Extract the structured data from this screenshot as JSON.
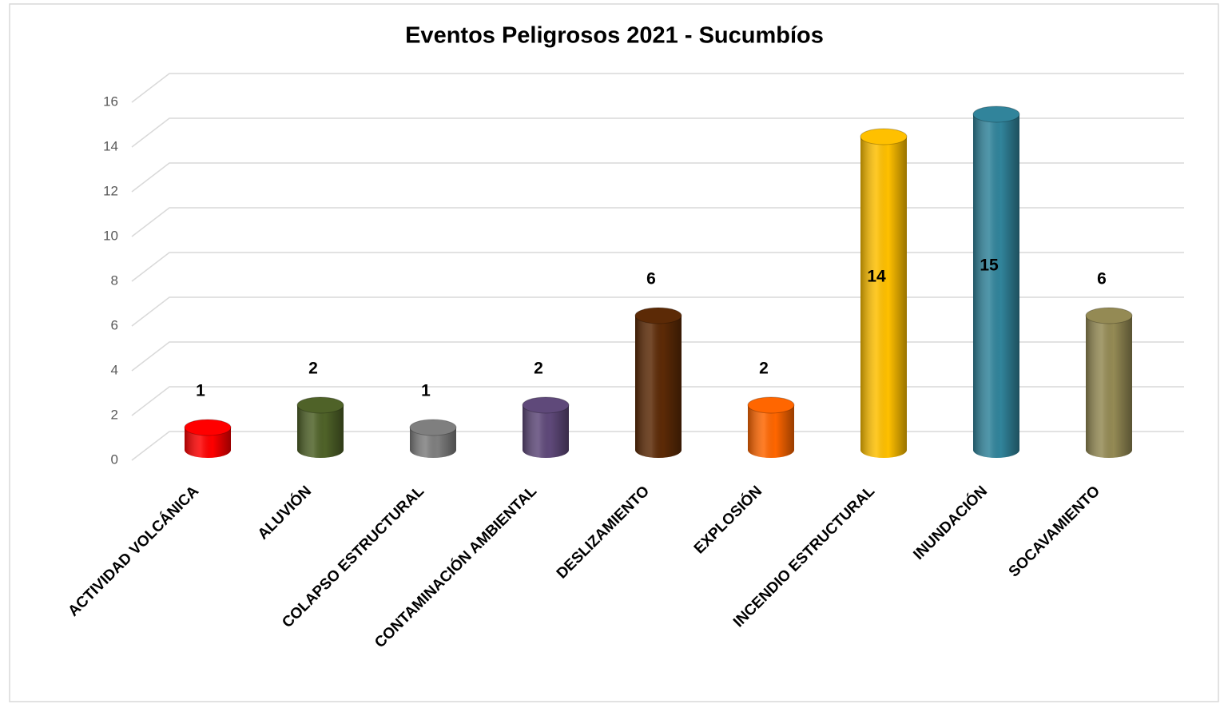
{
  "chart_data": {
    "type": "bar",
    "title": "Eventos Peligrosos 2021 - Sucumbíos",
    "categories": [
      "ACTIVIDAD VOLCÁNICA",
      "ALUVIÓN",
      "COLAPSO ESTRUCTURAL",
      "CONTAMINACIÓN AMBIENTAL",
      "DESLIZAMIENTO",
      "EXPLOSIÓN",
      "INCENDIO ESTRUCTURAL",
      "INUNDACIÓN",
      "SOCAVAMIENTO"
    ],
    "values": [
      1,
      2,
      1,
      2,
      6,
      2,
      14,
      15,
      6
    ],
    "colors": [
      "#ff0000",
      "#4f6228",
      "#7f7f7f",
      "#5f497a",
      "#5c2a06",
      "#ff6600",
      "#ffc000",
      "#31849b",
      "#948a54"
    ],
    "ylim": [
      0,
      16
    ],
    "yticks": [
      0,
      2,
      4,
      6,
      8,
      10,
      12,
      14,
      16
    ],
    "grid": true
  }
}
